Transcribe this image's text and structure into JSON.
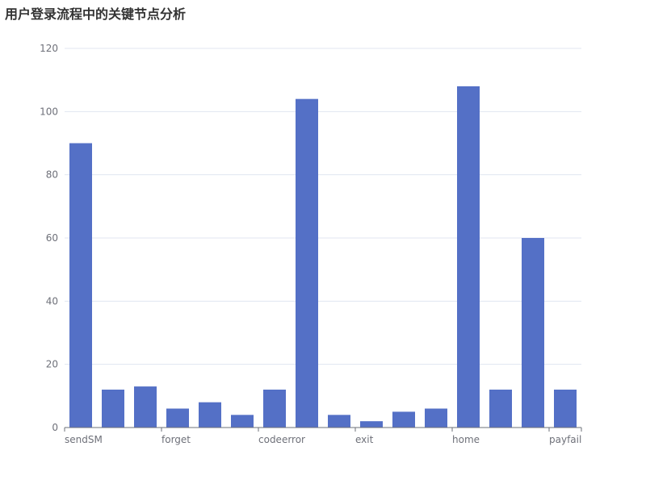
{
  "chart_data": {
    "type": "bar",
    "title": "用户登录流程中的关键节点分析",
    "xlabel": "",
    "ylabel": "",
    "categories": [
      "sendSM",
      "",
      "",
      "forget",
      "",
      "",
      "codeerror",
      "",
      "",
      "exit",
      "",
      "",
      "home",
      "",
      "",
      "payfail"
    ],
    "values": [
      90,
      12,
      13,
      6,
      8,
      4,
      12,
      104,
      4,
      2,
      5,
      6,
      108,
      12,
      60,
      12
    ],
    "ylim": [
      0,
      120
    ],
    "yticks": [
      0,
      20,
      40,
      60,
      80,
      100,
      120
    ],
    "grid": true,
    "legend": "none",
    "colors": {
      "bar": "#5470c6",
      "grid": "#e0e6f1",
      "axis": "#6e7079",
      "title": "#333333"
    }
  }
}
